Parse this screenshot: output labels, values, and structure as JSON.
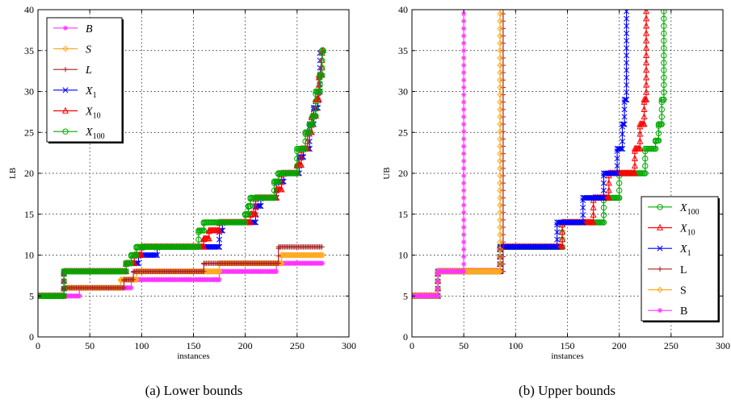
{
  "colors": {
    "B": "#ff33ff",
    "S": "#ffaa22",
    "L": "#aa2222",
    "X1": "#0000ff",
    "X10": "#ff0000",
    "X100": "#00aa00"
  },
  "chart_data": [
    {
      "type": "line",
      "caption": "(a) Lower bounds",
      "xlabel": "instances",
      "ylabel": "LB",
      "xlim": [
        0,
        300
      ],
      "ylim": [
        0,
        40
      ],
      "xticks": [
        "0",
        "50",
        "100",
        "150",
        "200",
        "250",
        "300"
      ],
      "yticks": [
        "0",
        "5",
        "10",
        "15",
        "20",
        "25",
        "30",
        "35",
        "40"
      ],
      "grid": true,
      "legend_position": "top-left",
      "series": [
        {
          "key": "B",
          "name": "B",
          "italic": true,
          "marker": "star",
          "color": "#ff33ff",
          "points": [
            [
              0,
              5
            ],
            [
              40,
              5
            ],
            [
              40,
              6
            ],
            [
              85,
              6
            ],
            [
              85,
              6
            ],
            [
              90,
              6
            ],
            [
              90,
              7
            ],
            [
              175,
              7
            ],
            [
              175,
              8
            ],
            [
              230,
              8
            ],
            [
              230,
              9
            ],
            [
              275,
              9
            ]
          ]
        },
        {
          "key": "S",
          "name": "S",
          "italic": true,
          "marker": "diamond",
          "color": "#ffaa22",
          "points": [
            [
              0,
              5
            ],
            [
              25,
              5
            ],
            [
              25,
              6
            ],
            [
              80,
              6
            ],
            [
              80,
              7
            ],
            [
              95,
              7
            ],
            [
              95,
              8
            ],
            [
              175,
              8
            ],
            [
              175,
              9
            ],
            [
              235,
              9
            ],
            [
              235,
              10
            ],
            [
              275,
              10
            ]
          ]
        },
        {
          "key": "L",
          "name": "L",
          "italic": true,
          "marker": "plus",
          "color": "#aa2222",
          "points": [
            [
              0,
              5
            ],
            [
              25,
              5
            ],
            [
              25,
              6
            ],
            [
              83,
              6
            ],
            [
              83,
              7
            ],
            [
              92,
              7
            ],
            [
              92,
              8
            ],
            [
              160,
              8
            ],
            [
              160,
              9
            ],
            [
              232,
              9
            ],
            [
              232,
              11
            ],
            [
              275,
              11
            ]
          ]
        },
        {
          "key": "X1",
          "name": "X1",
          "base": "X",
          "sub": "1",
          "italic": true,
          "marker": "x",
          "color": "#0000ff",
          "points": [
            [
              0,
              5
            ],
            [
              25,
              5
            ],
            [
              25,
              8
            ],
            [
              85,
              8
            ],
            [
              85,
              9
            ],
            [
              97,
              9
            ],
            [
              97,
              10
            ],
            [
              115,
              10
            ],
            [
              115,
              11
            ],
            [
              160,
              11
            ],
            [
              175,
              11
            ],
            [
              175,
              13
            ],
            [
              178,
              13
            ],
            [
              178,
              14
            ],
            [
              210,
              14
            ],
            [
              210,
              16
            ],
            [
              215,
              16
            ],
            [
              215,
              17
            ],
            [
              230,
              17
            ],
            [
              230,
              19
            ],
            [
              237,
              19
            ],
            [
              237,
              20
            ],
            [
              252,
              20
            ],
            [
              252,
              22
            ],
            [
              256,
              22
            ],
            [
              256,
              23
            ],
            [
              262,
              23
            ],
            [
              262,
              26
            ],
            [
              266,
              26
            ],
            [
              266,
              28
            ],
            [
              270,
              28
            ],
            [
              270,
              30
            ],
            [
              272,
              30
            ],
            [
              272,
              32
            ],
            [
              275,
              35
            ]
          ]
        },
        {
          "key": "X10",
          "name": "X10",
          "base": "X",
          "sub": "10",
          "italic": true,
          "marker": "triangle",
          "color": "#ff0000",
          "points": [
            [
              0,
              5
            ],
            [
              25,
              5
            ],
            [
              25,
              8
            ],
            [
              85,
              8
            ],
            [
              85,
              9
            ],
            [
              93,
              9
            ],
            [
              93,
              10
            ],
            [
              100,
              10
            ],
            [
              100,
              11
            ],
            [
              160,
              11
            ],
            [
              160,
              12
            ],
            [
              165,
              12
            ],
            [
              165,
              13
            ],
            [
              175,
              13
            ],
            [
              175,
              14
            ],
            [
              205,
              14
            ],
            [
              205,
              15
            ],
            [
              210,
              15
            ],
            [
              210,
              17
            ],
            [
              230,
              17
            ],
            [
              230,
              18
            ],
            [
              235,
              18
            ],
            [
              235,
              20
            ],
            [
              250,
              20
            ],
            [
              250,
              21
            ],
            [
              254,
              21
            ],
            [
              254,
              23
            ],
            [
              260,
              23
            ],
            [
              260,
              25
            ],
            [
              264,
              25
            ],
            [
              264,
              27
            ],
            [
              268,
              27
            ],
            [
              268,
              29
            ],
            [
              271,
              29
            ],
            [
              271,
              32
            ],
            [
              274,
              32
            ],
            [
              274,
              35
            ],
            [
              276,
              35
            ]
          ]
        },
        {
          "key": "X100",
          "name": "X100",
          "base": "X",
          "sub": "100",
          "italic": true,
          "marker": "circle",
          "color": "#00aa00",
          "points": [
            [
              0,
              5
            ],
            [
              25,
              5
            ],
            [
              25,
              8
            ],
            [
              85,
              8
            ],
            [
              85,
              9
            ],
            [
              90,
              9
            ],
            [
              90,
              10
            ],
            [
              95,
              10
            ],
            [
              95,
              11
            ],
            [
              155,
              11
            ],
            [
              155,
              13
            ],
            [
              160,
              13
            ],
            [
              160,
              14
            ],
            [
              200,
              14
            ],
            [
              200,
              15
            ],
            [
              203,
              15
            ],
            [
              203,
              16
            ],
            [
              205,
              16
            ],
            [
              205,
              17
            ],
            [
              228,
              17
            ],
            [
              228,
              19
            ],
            [
              232,
              19
            ],
            [
              232,
              20
            ],
            [
              250,
              20
            ],
            [
              250,
              23
            ],
            [
              258,
              23
            ],
            [
              258,
              25
            ],
            [
              262,
              25
            ],
            [
              262,
              26
            ],
            [
              265,
              26
            ],
            [
              265,
              27
            ],
            [
              268,
              27
            ],
            [
              268,
              30
            ],
            [
              272,
              30
            ],
            [
              272,
              32
            ],
            [
              274,
              32
            ],
            [
              274,
              35
            ],
            [
              276,
              35
            ]
          ]
        }
      ]
    },
    {
      "type": "line",
      "caption": "(b) Upper bounds",
      "xlabel": "instances",
      "ylabel": "UB",
      "xlim": [
        0,
        300
      ],
      "ylim": [
        0,
        40
      ],
      "xticks": [
        "0",
        "50",
        "100",
        "150",
        "200",
        "250",
        "300"
      ],
      "yticks": [
        "0",
        "5",
        "10",
        "15",
        "20",
        "25",
        "30",
        "35",
        "40"
      ],
      "grid": true,
      "legend_position": "bottom-right",
      "series": [
        {
          "key": "X100",
          "name": "X100",
          "base": "X",
          "sub": "100",
          "italic": true,
          "marker": "circle",
          "color": "#00aa00",
          "points": [
            [
              0,
              5
            ],
            [
              25,
              5
            ],
            [
              25,
              8
            ],
            [
              85,
              8
            ],
            [
              85,
              11
            ],
            [
              145,
              11
            ],
            [
              145,
              14
            ],
            [
              185,
              14
            ],
            [
              185,
              17
            ],
            [
              200,
              17
            ],
            [
              200,
              20
            ],
            [
              225,
              20
            ],
            [
              225,
              23
            ],
            [
              235,
              23
            ],
            [
              235,
              24
            ],
            [
              238,
              24
            ],
            [
              238,
              26
            ],
            [
              241,
              26
            ],
            [
              241,
              29
            ],
            [
              243,
              29
            ],
            [
              243,
              40
            ]
          ]
        },
        {
          "key": "X10",
          "name": "X10",
          "base": "X",
          "sub": "10",
          "italic": true,
          "marker": "triangle",
          "color": "#ff0000",
          "points": [
            [
              0,
              5
            ],
            [
              25,
              5
            ],
            [
              25,
              8
            ],
            [
              85,
              8
            ],
            [
              85,
              11
            ],
            [
              145,
              11
            ],
            [
              145,
              14
            ],
            [
              175,
              14
            ],
            [
              175,
              17
            ],
            [
              190,
              17
            ],
            [
              190,
              20
            ],
            [
              215,
              20
            ],
            [
              215,
              23
            ],
            [
              220,
              23
            ],
            [
              220,
              26
            ],
            [
              224,
              26
            ],
            [
              224,
              29
            ],
            [
              226,
              29
            ],
            [
              226,
              40
            ]
          ]
        },
        {
          "key": "X1",
          "name": "X1",
          "base": "X",
          "sub": "1",
          "italic": true,
          "marker": "x",
          "color": "#0000ff",
          "points": [
            [
              0,
              5
            ],
            [
              25,
              5
            ],
            [
              25,
              8
            ],
            [
              85,
              8
            ],
            [
              85,
              11
            ],
            [
              140,
              11
            ],
            [
              140,
              14
            ],
            [
              165,
              14
            ],
            [
              165,
              17
            ],
            [
              185,
              17
            ],
            [
              185,
              20
            ],
            [
              198,
              20
            ],
            [
              198,
              23
            ],
            [
              203,
              23
            ],
            [
              203,
              26
            ],
            [
              205,
              26
            ],
            [
              205,
              29
            ],
            [
              207,
              29
            ],
            [
              207,
              40
            ]
          ]
        },
        {
          "key": "L",
          "name": "L",
          "italic": false,
          "marker": "plus",
          "color": "#aa2222",
          "points": [
            [
              0,
              5
            ],
            [
              25,
              5
            ],
            [
              25,
              8
            ],
            [
              88,
              8
            ],
            [
              88,
              40
            ]
          ]
        },
        {
          "key": "S",
          "name": "S",
          "italic": false,
          "marker": "diamond",
          "color": "#ffaa22",
          "points": [
            [
              0,
              5
            ],
            [
              25,
              5
            ],
            [
              25,
              8
            ],
            [
              85,
              8
            ],
            [
              85,
              40
            ]
          ]
        },
        {
          "key": "B",
          "name": "B",
          "italic": false,
          "marker": "star",
          "color": "#ff33ff",
          "points": [
            [
              0,
              5
            ],
            [
              25,
              5
            ],
            [
              25,
              8
            ],
            [
              50,
              8
            ],
            [
              50,
              40
            ]
          ]
        }
      ]
    }
  ]
}
